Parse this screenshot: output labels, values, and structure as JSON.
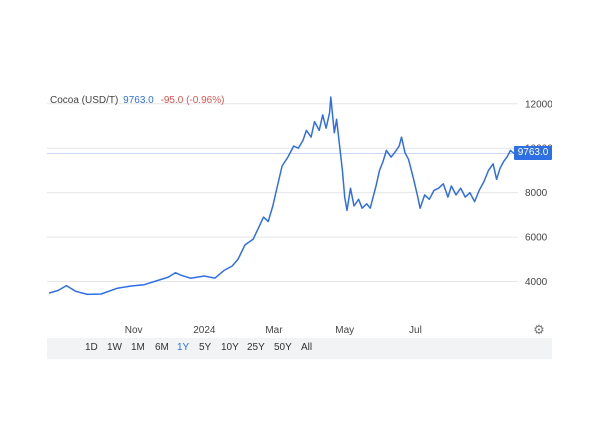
{
  "legend": {
    "symbol": "Cocoa (USD/T)",
    "last": "9763.0",
    "change": "-95.0 (-0.96%)"
  },
  "badge": {
    "value": "9763.0"
  },
  "ranges": [
    "1D",
    "1W",
    "1M",
    "6M",
    "1Y",
    "5Y",
    "10Y",
    "25Y",
    "50Y",
    "All"
  ],
  "active_range": "1Y",
  "colors": {
    "line": "#2f6fe4",
    "negative": "#e25353",
    "grid": "#e6e6e6",
    "range_bar": "#f2f3f5"
  },
  "chart_data": {
    "type": "line",
    "title": "",
    "xlabel": "",
    "ylabel": "",
    "ylim": [
      2000,
      12800
    ],
    "yticks": [
      "4000",
      "6000",
      "8000",
      "10000",
      "12000"
    ],
    "xticks": [
      "Nov",
      "2024",
      "Mar",
      "May",
      "Jul"
    ],
    "grid": true,
    "current_value": 9763.0,
    "series": [
      {
        "values": [
          [
            "2023-08-20",
            3480
          ],
          [
            "2023-08-28",
            3600
          ],
          [
            "2023-09-04",
            3820
          ],
          [
            "2023-09-12",
            3560
          ],
          [
            "2023-09-22",
            3420
          ],
          [
            "2023-10-04",
            3440
          ],
          [
            "2023-10-18",
            3700
          ],
          [
            "2023-10-30",
            3800
          ],
          [
            "2023-11-10",
            3860
          ],
          [
            "2023-11-22",
            4050
          ],
          [
            "2023-12-01",
            4200
          ],
          [
            "2023-12-07",
            4400
          ],
          [
            "2023-12-12",
            4280
          ],
          [
            "2023-12-20",
            4150
          ],
          [
            "2024-01-01",
            4250
          ],
          [
            "2024-01-10",
            4150
          ],
          [
            "2024-01-18",
            4500
          ],
          [
            "2024-01-25",
            4700
          ],
          [
            "2024-01-30",
            5000
          ],
          [
            "2024-02-05",
            5650
          ],
          [
            "2024-02-12",
            5900
          ],
          [
            "2024-02-17",
            6450
          ],
          [
            "2024-02-21",
            6900
          ],
          [
            "2024-02-25",
            6700
          ],
          [
            "2024-02-29",
            7400
          ],
          [
            "2024-03-04",
            8300
          ],
          [
            "2024-03-08",
            9200
          ],
          [
            "2024-03-13",
            9600
          ],
          [
            "2024-03-18",
            10100
          ],
          [
            "2024-03-22",
            10000
          ],
          [
            "2024-03-26",
            10350
          ],
          [
            "2024-03-29",
            10800
          ],
          [
            "2024-04-02",
            10500
          ],
          [
            "2024-04-05",
            11200
          ],
          [
            "2024-04-09",
            10800
          ],
          [
            "2024-04-12",
            11500
          ],
          [
            "2024-04-15",
            10900
          ],
          [
            "2024-04-18",
            11600
          ],
          [
            "2024-04-19",
            12300
          ],
          [
            "2024-04-22",
            10700
          ],
          [
            "2024-04-24",
            11300
          ],
          [
            "2024-04-29",
            9000
          ],
          [
            "2024-05-01",
            7800
          ],
          [
            "2024-05-03",
            7200
          ],
          [
            "2024-05-06",
            8200
          ],
          [
            "2024-05-09",
            7400
          ],
          [
            "2024-05-13",
            7700
          ],
          [
            "2024-05-16",
            7300
          ],
          [
            "2024-05-20",
            7500
          ],
          [
            "2024-05-23",
            7300
          ],
          [
            "2024-05-28",
            8300
          ],
          [
            "2024-05-31",
            9000
          ],
          [
            "2024-06-03",
            9400
          ],
          [
            "2024-06-06",
            9900
          ],
          [
            "2024-06-10",
            9600
          ],
          [
            "2024-06-13",
            9800
          ],
          [
            "2024-06-17",
            10100
          ],
          [
            "2024-06-19",
            10500
          ],
          [
            "2024-06-22",
            9800
          ],
          [
            "2024-06-25",
            9500
          ],
          [
            "2024-06-29",
            8700
          ],
          [
            "2024-07-03",
            7800
          ],
          [
            "2024-07-05",
            7300
          ],
          [
            "2024-07-09",
            7900
          ],
          [
            "2024-07-13",
            7700
          ],
          [
            "2024-07-17",
            8100
          ],
          [
            "2024-07-21",
            8200
          ],
          [
            "2024-07-25",
            8400
          ],
          [
            "2024-07-29",
            7800
          ],
          [
            "2024-08-01",
            8300
          ],
          [
            "2024-08-05",
            7900
          ],
          [
            "2024-08-09",
            8200
          ],
          [
            "2024-08-13",
            7800
          ],
          [
            "2024-08-17",
            8000
          ],
          [
            "2024-08-21",
            7600
          ],
          [
            "2024-08-25",
            8100
          ],
          [
            "2024-08-29",
            8500
          ],
          [
            "2024-09-02",
            9000
          ],
          [
            "2024-09-06",
            9300
          ],
          [
            "2024-09-09",
            8600
          ],
          [
            "2024-09-12",
            9100
          ],
          [
            "2024-09-15",
            9400
          ],
          [
            "2024-09-18",
            9600
          ],
          [
            "2024-09-21",
            9900
          ],
          [
            "2024-09-24",
            9763
          ]
        ]
      }
    ]
  }
}
